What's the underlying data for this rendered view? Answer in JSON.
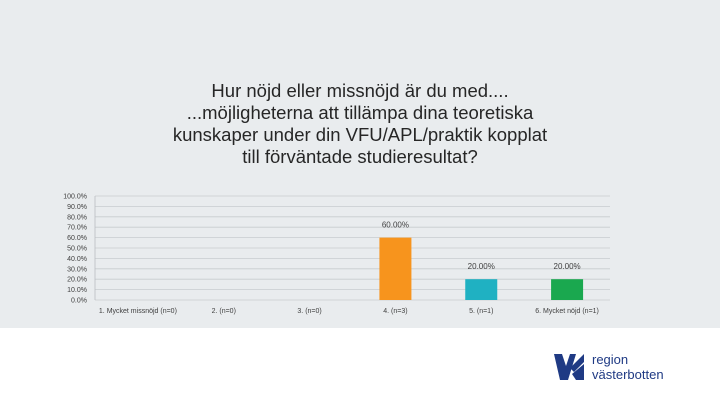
{
  "chart_data": {
    "type": "bar",
    "title": "Hur nöjd eller missnöjd är du med....\n...möjligheterna att tillämpa dina teoretiska\nkunskaper under din VFU/APL/praktik kopplat\ntill förväntade studieresultat?",
    "categories": [
      "1. Mycket missnöjd (n=0)",
      "2. (n=0)",
      "3. (n=0)",
      "4. (n=3)",
      "5. (n=1)",
      "6. Mycket nöjd (n=1)"
    ],
    "values": [
      0,
      0,
      0,
      60,
      20,
      20
    ],
    "data_labels": [
      "",
      "",
      "",
      "60.00%",
      "20.00%",
      "20.00%"
    ],
    "colors": [
      "#c0504d",
      "#f39c46",
      "#f7b73b",
      "#f7941d",
      "#1fb1c2",
      "#1aa84f"
    ],
    "yticks": [
      "100.0%",
      "90.0%",
      "80.0%",
      "70.0%",
      "60.0%",
      "50.0%",
      "40.0%",
      "30.0%",
      "20.0%",
      "10.0%",
      "0.0%"
    ],
    "ylim": [
      0,
      100
    ],
    "xlabel": "",
    "ylabel": "",
    "grid": true,
    "legend": "none"
  },
  "logo": {
    "text": "region\nvästerbotten",
    "color": "#1f3a84"
  }
}
